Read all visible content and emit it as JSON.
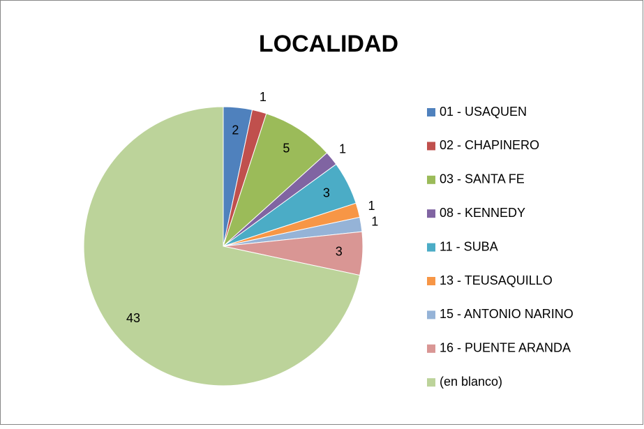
{
  "chart_data": {
    "type": "pie",
    "title": "LOCALIDAD",
    "categories": [
      "01 - USAQUEN",
      "02 - CHAPINERO",
      "03 - SANTA FE",
      "08 - KENNEDY",
      "11 - SUBA",
      "13 - TEUSAQUILLO",
      "15 - ANTONIO NARINO",
      "16 - PUENTE ARANDA",
      "(en blanco)"
    ],
    "values": [
      2,
      1,
      5,
      1,
      3,
      1,
      1,
      3,
      43
    ],
    "colors": [
      "#4f81bd",
      "#c0504d",
      "#9bbb59",
      "#8064a2",
      "#4bacc6",
      "#f79646",
      "#95b3d7",
      "#d99694",
      "#bcd39a"
    ],
    "legend": "right"
  }
}
